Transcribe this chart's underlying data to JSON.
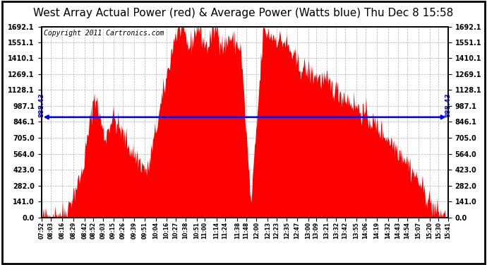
{
  "title": "West Array Actual Power (red) & Average Power (Watts blue) Thu Dec 8 15:58",
  "copyright_text": "Copyright 2011 Cartronics.com",
  "avg_power": 888.43,
  "y_max": 1692.1,
  "y_ticks": [
    0.0,
    141.0,
    282.0,
    423.0,
    564.0,
    705.0,
    846.1,
    987.1,
    1128.1,
    1269.1,
    1410.1,
    1551.1,
    1692.1
  ],
  "x_labels": [
    "07:52",
    "08:03",
    "08:16",
    "08:29",
    "08:42",
    "08:52",
    "09:03",
    "09:15",
    "09:26",
    "09:39",
    "09:51",
    "10:04",
    "10:16",
    "10:27",
    "10:38",
    "10:51",
    "11:00",
    "11:14",
    "11:24",
    "11:38",
    "11:48",
    "12:00",
    "12:13",
    "12:23",
    "12:35",
    "12:47",
    "13:00",
    "13:09",
    "13:21",
    "13:32",
    "13:42",
    "13:55",
    "14:06",
    "14:19",
    "14:32",
    "14:43",
    "14:54",
    "15:07",
    "15:20",
    "15:30",
    "15:41"
  ],
  "fill_color": "#FF0000",
  "line_color": "#0000FF",
  "bg_color": "#FFFFFF",
  "grid_color": "#AAAAAA",
  "title_fontsize": 11,
  "copyright_fontsize": 7,
  "tick_fontsize": 7,
  "xtick_fontsize": 5.5
}
